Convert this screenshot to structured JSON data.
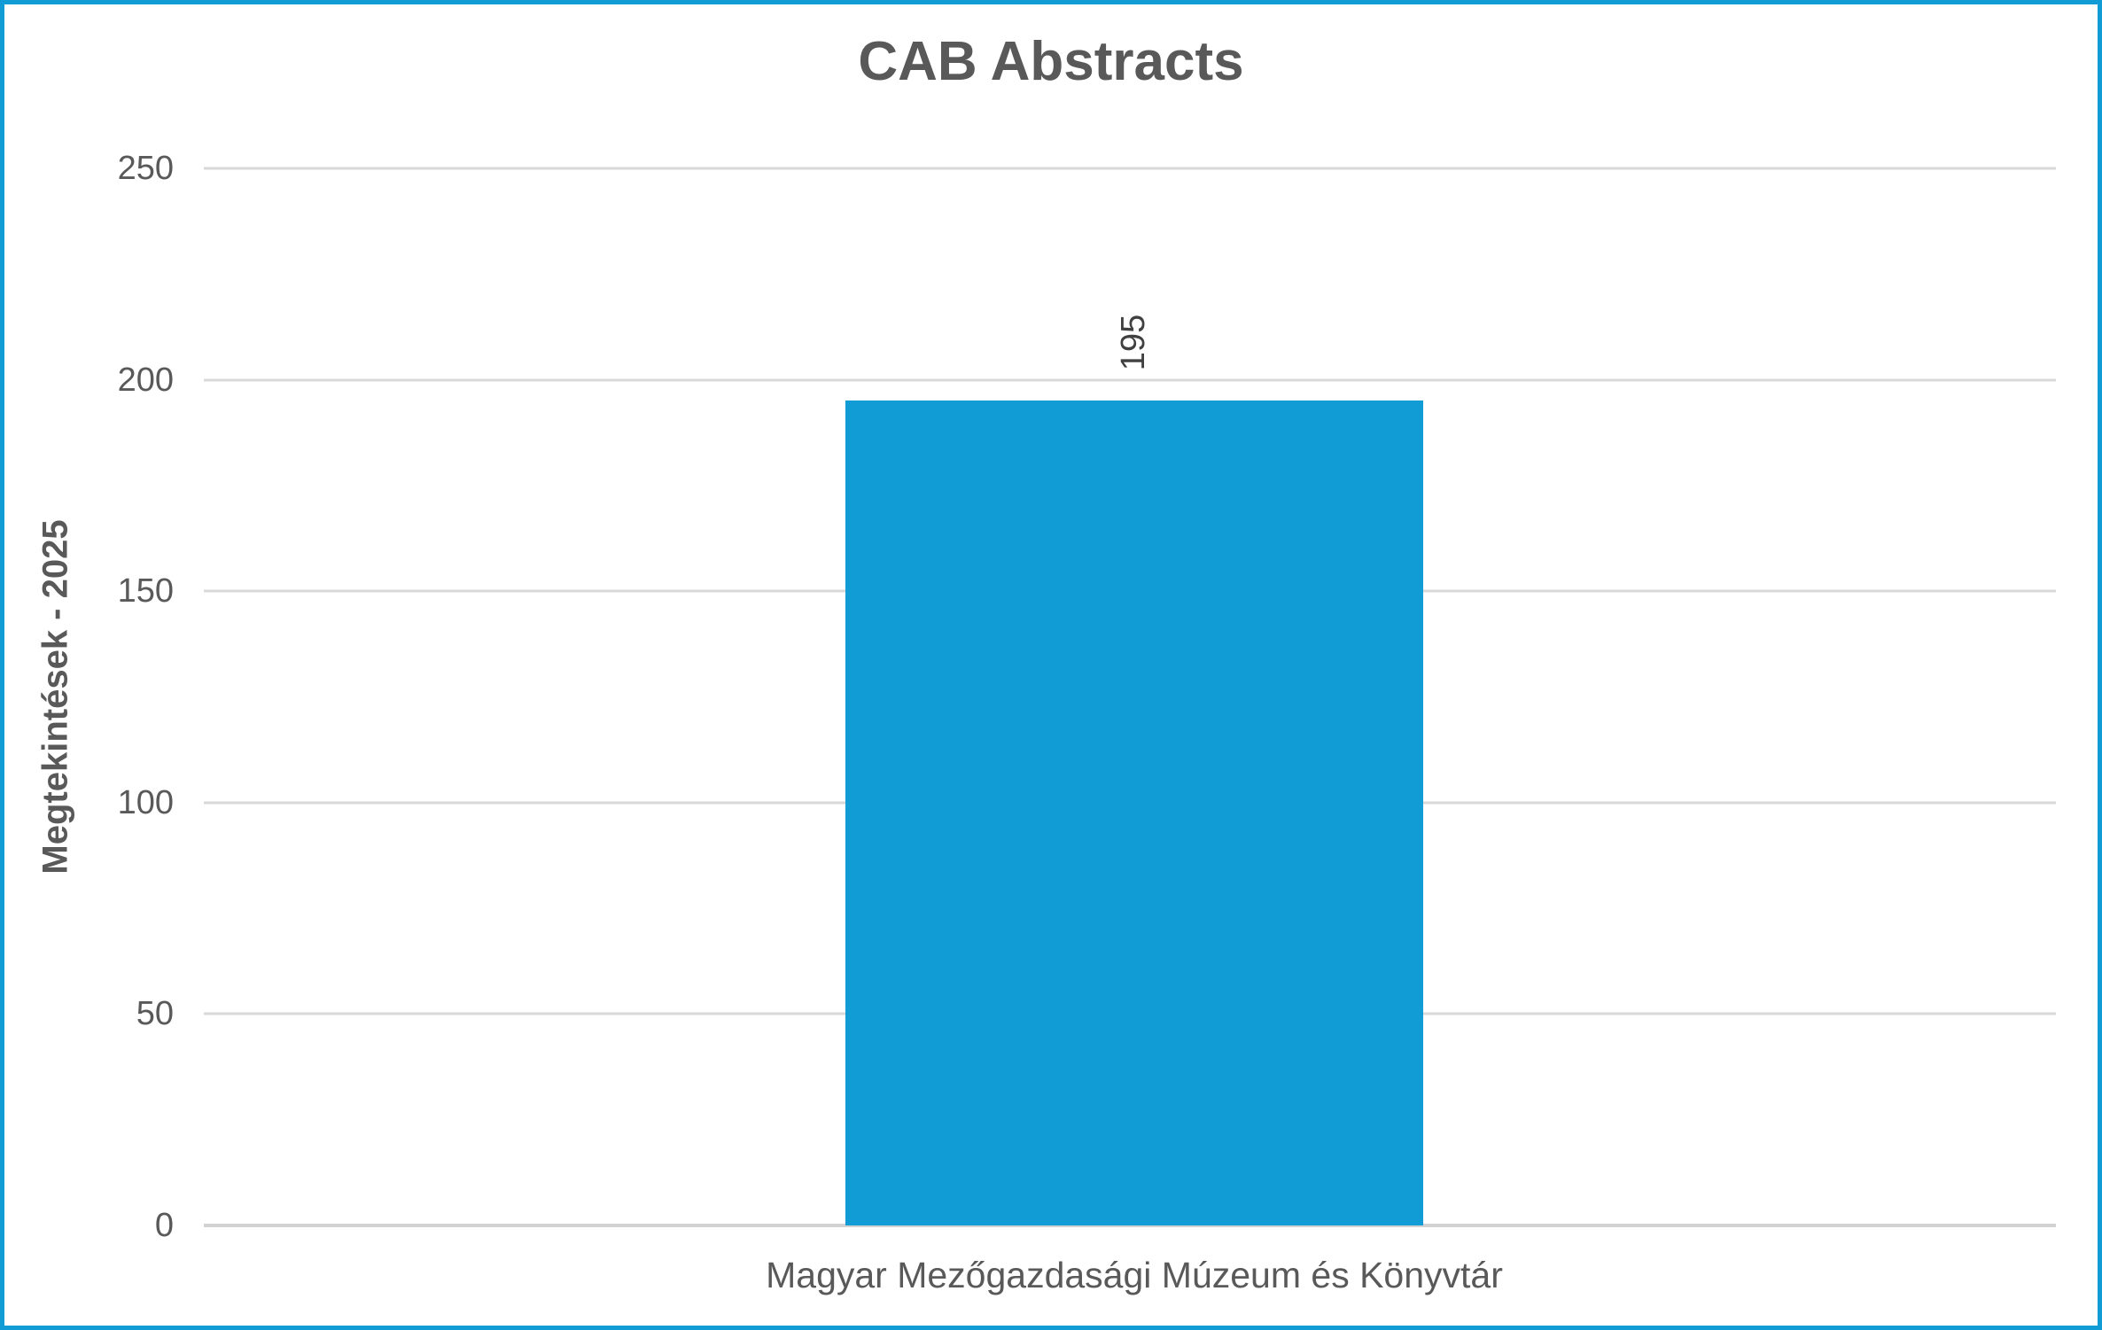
{
  "chart_data": {
    "type": "bar",
    "title": "CAB Abstracts",
    "ylabel": "Megtekintések - 2025",
    "xlabel": "",
    "categories": [
      "Magyar Mezőgazdasági Múzeum és Könyvtár"
    ],
    "values": [
      195
    ],
    "data_labels": [
      "195"
    ],
    "yticks": [
      0,
      50,
      100,
      150,
      200,
      250
    ],
    "ylim": [
      0,
      250
    ],
    "grid": true,
    "legend": "none",
    "data_label_rotation_deg": -90,
    "colors": {
      "bar": "#119CD6",
      "frame_border": "#119CD6",
      "gridline": "#D9D9D9",
      "title_text": "#595959",
      "axis_text": "#595959",
      "data_label_text": "#404040"
    }
  }
}
